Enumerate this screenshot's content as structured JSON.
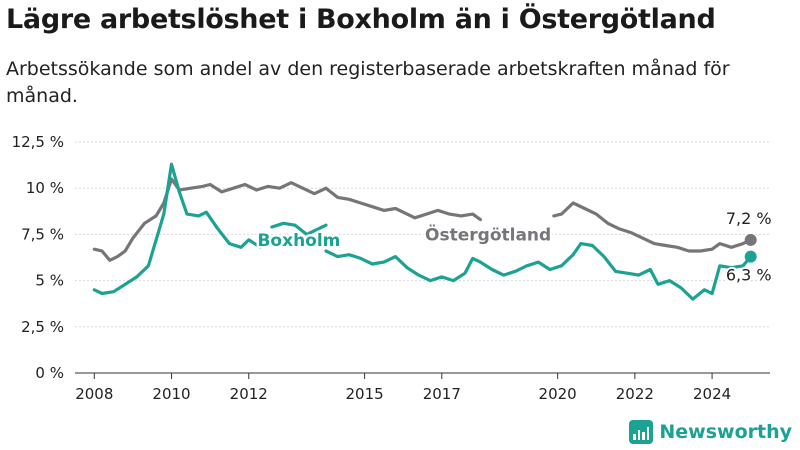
{
  "title": "Lägre arbetslöshet i Boxholm än i Östergötland",
  "subtitle": "Arbetssökande som andel av den registerbaserade arbetskraften månad för månad.",
  "brand": "Newsworthy",
  "chart_data": {
    "type": "line",
    "y_ticks": [
      "0 %",
      "2,5 %",
      "5 %",
      "7,5 %",
      "10 %",
      "12,5 %"
    ],
    "x_ticks": [
      "2008",
      "2010",
      "2012",
      "2015",
      "2017",
      "2020",
      "2022",
      "2024"
    ],
    "ylim": [
      0,
      12.5
    ],
    "xlim": [
      2007.5,
      2025.5
    ],
    "grid": true,
    "series": [
      {
        "name": "Östergötland",
        "color": "#75757a",
        "end_label": "7,2 %",
        "points": [
          [
            2008.0,
            6.7
          ],
          [
            2008.2,
            6.6
          ],
          [
            2008.4,
            6.1
          ],
          [
            2008.6,
            6.3
          ],
          [
            2008.8,
            6.6
          ],
          [
            2009.0,
            7.3
          ],
          [
            2009.3,
            8.1
          ],
          [
            2009.6,
            8.5
          ],
          [
            2009.8,
            9.2
          ],
          [
            2010.0,
            10.5
          ],
          [
            2010.2,
            9.9
          ],
          [
            2010.5,
            10.0
          ],
          [
            2010.8,
            10.1
          ],
          [
            2011.0,
            10.2
          ],
          [
            2011.3,
            9.8
          ],
          [
            2011.6,
            10.0
          ],
          [
            2011.9,
            10.2
          ],
          [
            2012.2,
            9.9
          ],
          [
            2012.5,
            10.1
          ],
          [
            2012.8,
            10.0
          ],
          [
            2013.1,
            10.3
          ],
          [
            2013.4,
            10.0
          ],
          [
            2013.7,
            9.7
          ],
          [
            2014.0,
            10.0
          ],
          [
            2014.3,
            9.5
          ],
          [
            2014.6,
            9.4
          ],
          [
            2014.9,
            9.2
          ],
          [
            2015.2,
            9.0
          ],
          [
            2015.5,
            8.8
          ],
          [
            2015.8,
            8.9
          ],
          [
            2016.0,
            8.7
          ],
          [
            2016.3,
            8.4
          ],
          [
            2016.6,
            8.6
          ],
          [
            2016.9,
            8.8
          ],
          [
            2017.2,
            8.6
          ],
          [
            2017.5,
            8.5
          ],
          [
            2017.8,
            8.6
          ],
          [
            2018.0,
            8.3
          ]
        ],
        "points_b": [
          [
            2019.9,
            8.5
          ],
          [
            2020.1,
            8.6
          ],
          [
            2020.4,
            9.2
          ],
          [
            2020.7,
            8.9
          ],
          [
            2021.0,
            8.6
          ],
          [
            2021.3,
            8.1
          ],
          [
            2021.6,
            7.8
          ],
          [
            2021.9,
            7.6
          ],
          [
            2022.2,
            7.3
          ],
          [
            2022.5,
            7.0
          ],
          [
            2022.8,
            6.9
          ],
          [
            2023.1,
            6.8
          ],
          [
            2023.4,
            6.6
          ],
          [
            2023.7,
            6.6
          ],
          [
            2024.0,
            6.7
          ],
          [
            2024.2,
            7.0
          ],
          [
            2024.5,
            6.8
          ],
          [
            2024.8,
            7.0
          ],
          [
            2025.0,
            7.2
          ]
        ]
      },
      {
        "name": "Boxholm",
        "color": "#1ba293",
        "end_label": "6,3 %",
        "points": [
          [
            2008.0,
            4.5
          ],
          [
            2008.2,
            4.3
          ],
          [
            2008.5,
            4.4
          ],
          [
            2008.8,
            4.8
          ],
          [
            2009.1,
            5.2
          ],
          [
            2009.4,
            5.8
          ],
          [
            2009.6,
            7.2
          ],
          [
            2009.8,
            8.6
          ],
          [
            2010.0,
            11.3
          ],
          [
            2010.2,
            9.8
          ],
          [
            2010.4,
            8.6
          ],
          [
            2010.7,
            8.5
          ],
          [
            2010.9,
            8.7
          ],
          [
            2011.2,
            7.8
          ],
          [
            2011.5,
            7.0
          ],
          [
            2011.8,
            6.8
          ],
          [
            2012.0,
            7.2
          ],
          [
            2012.3,
            6.8
          ]
        ],
        "points_b": [
          [
            2012.6,
            7.9
          ],
          [
            2012.9,
            8.1
          ],
          [
            2013.2,
            8.0
          ],
          [
            2013.5,
            7.5
          ],
          [
            2013.8,
            7.8
          ],
          [
            2014.0,
            8.0
          ]
        ],
        "points_c": [
          [
            2014.0,
            6.6
          ],
          [
            2014.3,
            6.3
          ],
          [
            2014.6,
            6.4
          ],
          [
            2014.9,
            6.2
          ],
          [
            2015.2,
            5.9
          ],
          [
            2015.5,
            6.0
          ],
          [
            2015.8,
            6.3
          ],
          [
            2016.1,
            5.7
          ],
          [
            2016.4,
            5.3
          ],
          [
            2016.7,
            5.0
          ],
          [
            2017.0,
            5.2
          ],
          [
            2017.3,
            5.0
          ],
          [
            2017.6,
            5.4
          ],
          [
            2017.8,
            6.2
          ],
          [
            2018.0,
            6.0
          ],
          [
            2018.3,
            5.6
          ],
          [
            2018.6,
            5.3
          ],
          [
            2018.9,
            5.5
          ],
          [
            2019.2,
            5.8
          ],
          [
            2019.5,
            6.0
          ],
          [
            2019.8,
            5.6
          ],
          [
            2020.1,
            5.8
          ],
          [
            2020.4,
            6.4
          ],
          [
            2020.6,
            7.0
          ],
          [
            2020.9,
            6.9
          ],
          [
            2021.2,
            6.3
          ],
          [
            2021.5,
            5.5
          ],
          [
            2021.8,
            5.4
          ],
          [
            2022.1,
            5.3
          ],
          [
            2022.4,
            5.6
          ],
          [
            2022.6,
            4.8
          ],
          [
            2022.9,
            5.0
          ],
          [
            2023.2,
            4.6
          ],
          [
            2023.5,
            4.0
          ],
          [
            2023.8,
            4.5
          ],
          [
            2024.0,
            4.3
          ],
          [
            2024.2,
            5.8
          ],
          [
            2024.5,
            5.7
          ],
          [
            2024.8,
            5.8
          ],
          [
            2025.0,
            6.3
          ]
        ]
      }
    ]
  }
}
